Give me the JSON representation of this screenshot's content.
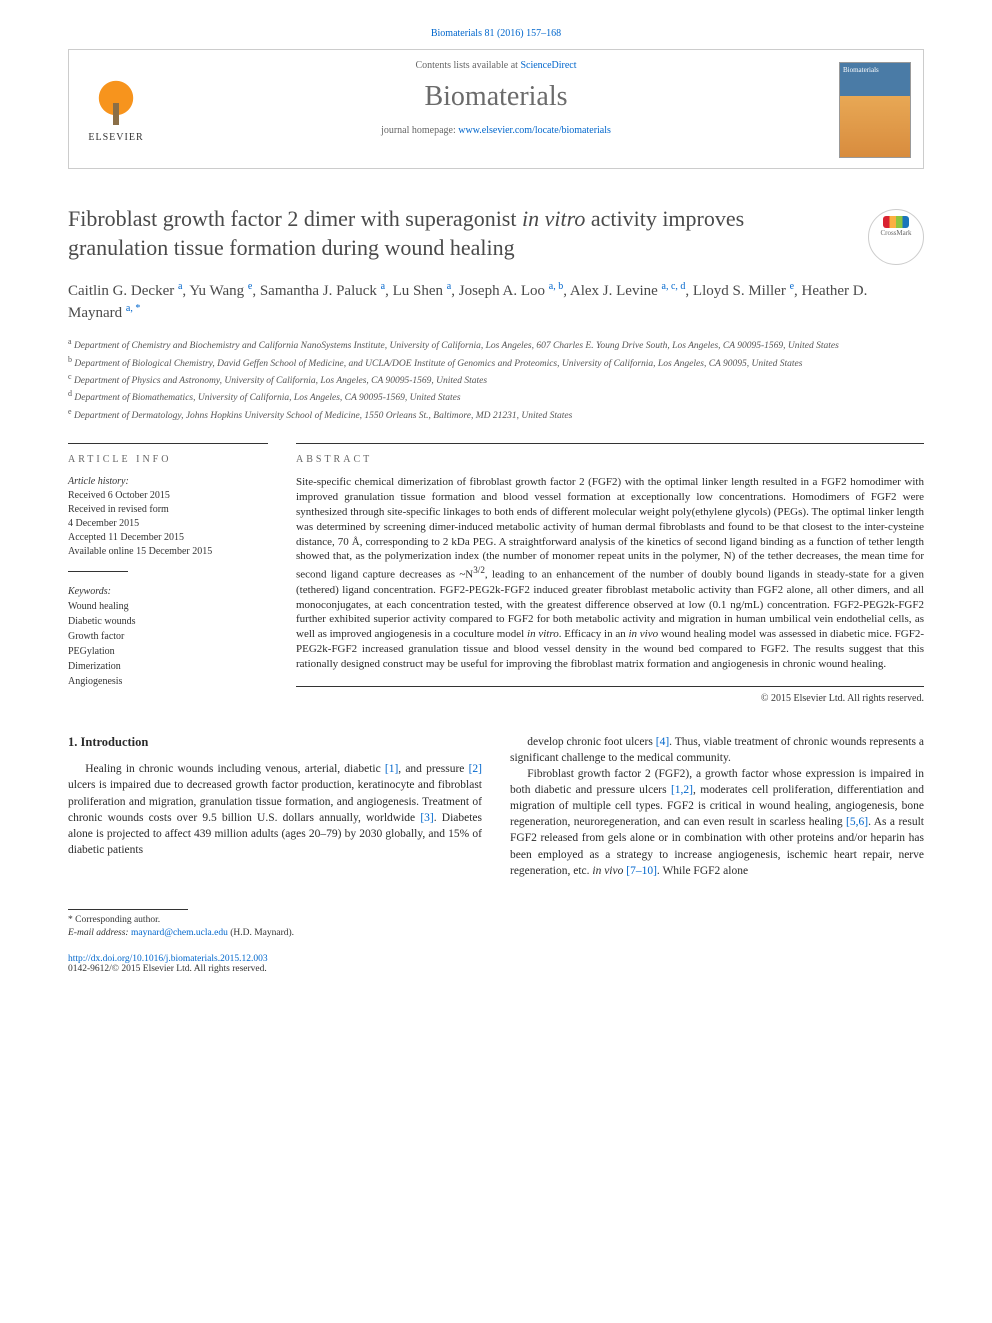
{
  "citation": "Biomaterials 81 (2016) 157–168",
  "header": {
    "contents_prefix": "Contents lists available at ",
    "contents_link": "ScienceDirect",
    "journal": "Biomaterials",
    "homepage_prefix": "journal homepage: ",
    "homepage_url": "www.elsevier.com/locate/biomaterials",
    "publisher": "ELSEVIER",
    "cover_label": "Biomaterials"
  },
  "article": {
    "title_html": "Fibroblast growth factor 2 dimer with superagonist <span class=\"ital\">in vitro</span> activity improves granulation tissue formation during wound healing",
    "crossmark": "CrossMark",
    "authors_html": "Caitlin G. Decker <sup>a</sup>, Yu Wang <sup>e</sup>, Samantha J. Paluck <sup>a</sup>, Lu Shen <sup>a</sup>, Joseph A. Loo <sup>a, b</sup>, Alex J. Levine <sup>a, c, d</sup>, Lloyd S. Miller <sup>e</sup>, Heather D. Maynard <sup>a, *</sup>",
    "affiliations": [
      {
        "sup": "a",
        "text": "Department of Chemistry and Biochemistry and California NanoSystems Institute, University of California, Los Angeles, 607 Charles E. Young Drive South, Los Angeles, CA 90095-1569, United States"
      },
      {
        "sup": "b",
        "text": "Department of Biological Chemistry, David Geffen School of Medicine, and UCLA/DOE Institute of Genomics and Proteomics, University of California, Los Angeles, CA 90095, United States"
      },
      {
        "sup": "c",
        "text": "Department of Physics and Astronomy, University of California, Los Angeles, CA 90095-1569, United States"
      },
      {
        "sup": "d",
        "text": "Department of Biomathematics, University of California, Los Angeles, CA 90095-1569, United States"
      },
      {
        "sup": "e",
        "text": "Department of Dermatology, Johns Hopkins University School of Medicine, 1550 Orleans St., Baltimore, MD 21231, United States"
      }
    ]
  },
  "info": {
    "heading": "ARTICLE INFO",
    "history_label": "Article history:",
    "history": [
      "Received 6 October 2015",
      "Received in revised form",
      "4 December 2015",
      "Accepted 11 December 2015",
      "Available online 15 December 2015"
    ],
    "keywords_label": "Keywords:",
    "keywords": [
      "Wound healing",
      "Diabetic wounds",
      "Growth factor",
      "PEGylation",
      "Dimerization",
      "Angiogenesis"
    ]
  },
  "abstract": {
    "heading": "ABSTRACT",
    "text_html": "Site-specific chemical dimerization of fibroblast growth factor 2 (FGF2) with the optimal linker length resulted in a FGF2 homodimer with improved granulation tissue formation and blood vessel formation at exceptionally low concentrations. Homodimers of FGF2 were synthesized through site-specific linkages to both ends of different molecular weight poly(ethylene glycols) (PEGs). The optimal linker length was determined by screening dimer-induced metabolic activity of human dermal fibroblasts and found to be that closest to the inter-cysteine distance, 70 Å, corresponding to 2 kDa PEG. A straightforward analysis of the kinetics of second ligand binding as a function of tether length showed that, as the polymerization index (the number of monomer repeat units in the polymer, N) of the tether decreases, the mean time for second ligand capture decreases as ~N<sup>3/2</sup>, leading to an enhancement of the number of doubly bound ligands in steady-state for a given (tethered) ligand concentration. FGF2-PEG2k-FGF2 induced greater fibroblast metabolic activity than FGF2 alone, all other dimers, and all monoconjugates, at each concentration tested, with the greatest difference observed at low (0.1 ng/mL) concentration. FGF2-PEG2k-FGF2 further exhibited superior activity compared to FGF2 for both metabolic activity and migration in human umbilical vein endothelial cells, as well as improved angiogenesis in a coculture model <span class=\"ital\">in vitro</span>. Efficacy in an <span class=\"ital\">in vivo</span> wound healing model was assessed in diabetic mice. FGF2-PEG2k-FGF2 increased granulation tissue and blood vessel density in the wound bed compared to FGF2. The results suggest that this rationally designed construct may be useful for improving the fibroblast matrix formation and angiogenesis in chronic wound healing.",
    "copyright": "© 2015 Elsevier Ltd. All rights reserved."
  },
  "body": {
    "section_heading": "1. Introduction",
    "p1_html": "Healing in chronic wounds including venous, arterial, diabetic <a href=\"#\">[1]</a>, and pressure <a href=\"#\">[2]</a> ulcers is impaired due to decreased growth factor production, keratinocyte and fibroblast proliferation and migration, granulation tissue formation, and angiogenesis. Treatment of chronic wounds costs over 9.5 billion U.S. dollars annually, worldwide <a href=\"#\">[3]</a>. Diabetes alone is projected to affect 439 million adults (ages 20–79) by 2030 globally, and 15% of diabetic patients",
    "p2_html": "develop chronic foot ulcers <a href=\"#\">[4]</a>. Thus, viable treatment of chronic wounds represents a significant challenge to the medical community.",
    "p3_html": "Fibroblast growth factor 2 (FGF2), a growth factor whose expression is impaired in both diabetic and pressure ulcers <a href=\"#\">[1,2]</a>, moderates cell proliferation, differentiation and migration of multiple cell types. FGF2 is critical in wound healing, angiogenesis, bone regeneration, neuroregeneration, and can even result in scarless healing <a href=\"#\">[5,6]</a>. As a result FGF2 released from gels alone or in combination with other proteins and/or heparin has been employed as a strategy to increase angiogenesis, ischemic heart repair, nerve regeneration, etc. <span class=\"ital\">in vivo</span> <a href=\"#\">[7–10]</a>. While FGF2 alone"
  },
  "footnotes": {
    "corresponding": "* Corresponding author.",
    "email_label": "E-mail address:",
    "email": "maynard@chem.ucla.edu",
    "email_suffix": "(H.D. Maynard).",
    "doi": "http://dx.doi.org/10.1016/j.biomaterials.2015.12.003",
    "issn_line": "0142-9612/© 2015 Elsevier Ltd. All rights reserved."
  },
  "colors": {
    "link": "#0066cc",
    "text": "#333333",
    "journal_grey": "#6b6b6b"
  }
}
